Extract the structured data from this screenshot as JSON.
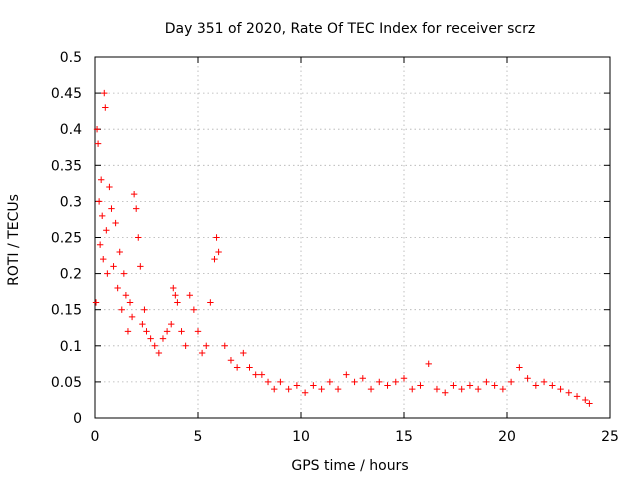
{
  "chart_data": {
    "type": "scatter",
    "title": "Day 351 of 2020, Rate Of TEC Index for receiver scrz",
    "xlabel": "GPS time / hours",
    "ylabel": "ROTI / TECUs",
    "xlim": [
      0,
      25
    ],
    "ylim": [
      0,
      0.5
    ],
    "xticks": [
      0,
      5,
      10,
      15,
      20,
      25
    ],
    "yticks": [
      0,
      0.05,
      0.1,
      0.15,
      0.2,
      0.25,
      0.3,
      0.35,
      0.4,
      0.45,
      0.5
    ],
    "xtick_labels": [
      "0",
      "5",
      "10",
      "15",
      "20",
      "25"
    ],
    "ytick_labels": [
      "0",
      "0.05",
      "0.1",
      "0.15",
      "0.2",
      "0.25",
      "0.3",
      "0.35",
      "0.4",
      "0.45",
      "0.5"
    ],
    "grid": true,
    "marker": "plus",
    "color": "#ff0000",
    "series": [
      {
        "name": "ROTI",
        "x": [
          0.05,
          0.1,
          0.15,
          0.2,
          0.25,
          0.3,
          0.35,
          0.4,
          0.45,
          0.5,
          0.55,
          0.6,
          0.7,
          0.8,
          0.9,
          1.0,
          1.1,
          1.2,
          1.3,
          1.4,
          1.5,
          1.6,
          1.7,
          1.8,
          1.9,
          2.0,
          2.1,
          2.2,
          2.3,
          2.4,
          2.5,
          2.7,
          2.9,
          3.1,
          3.3,
          3.5,
          3.7,
          3.8,
          3.9,
          4.0,
          4.2,
          4.4,
          4.6,
          4.8,
          5.0,
          5.2,
          5.4,
          5.6,
          5.8,
          5.9,
          6.0,
          6.3,
          6.6,
          6.9,
          7.2,
          7.5,
          7.8,
          8.1,
          8.4,
          8.7,
          9.0,
          9.4,
          9.8,
          10.2,
          10.6,
          11.0,
          11.4,
          11.8,
          12.2,
          12.6,
          13.0,
          13.4,
          13.8,
          14.2,
          14.6,
          15.0,
          15.4,
          15.8,
          16.2,
          16.6,
          17.0,
          17.4,
          17.8,
          18.2,
          18.6,
          19.0,
          19.4,
          19.8,
          20.2,
          20.6,
          21.0,
          21.4,
          21.8,
          22.2,
          22.6,
          23.0,
          23.4,
          23.8,
          24.0
        ],
        "y": [
          0.16,
          0.4,
          0.38,
          0.3,
          0.24,
          0.33,
          0.28,
          0.22,
          0.45,
          0.43,
          0.26,
          0.2,
          0.32,
          0.29,
          0.21,
          0.27,
          0.18,
          0.23,
          0.15,
          0.2,
          0.17,
          0.12,
          0.16,
          0.14,
          0.31,
          0.29,
          0.25,
          0.21,
          0.13,
          0.15,
          0.12,
          0.11,
          0.1,
          0.09,
          0.11,
          0.12,
          0.13,
          0.18,
          0.17,
          0.16,
          0.12,
          0.1,
          0.17,
          0.15,
          0.12,
          0.09,
          0.1,
          0.16,
          0.22,
          0.25,
          0.23,
          0.1,
          0.08,
          0.07,
          0.09,
          0.07,
          0.06,
          0.06,
          0.05,
          0.04,
          0.05,
          0.04,
          0.045,
          0.035,
          0.045,
          0.04,
          0.05,
          0.04,
          0.06,
          0.05,
          0.055,
          0.04,
          0.05,
          0.045,
          0.05,
          0.055,
          0.04,
          0.045,
          0.075,
          0.04,
          0.035,
          0.045,
          0.04,
          0.045,
          0.04,
          0.05,
          0.045,
          0.04,
          0.05,
          0.07,
          0.055,
          0.045,
          0.05,
          0.045,
          0.04,
          0.035,
          0.03,
          0.025,
          0.02
        ]
      }
    ]
  }
}
